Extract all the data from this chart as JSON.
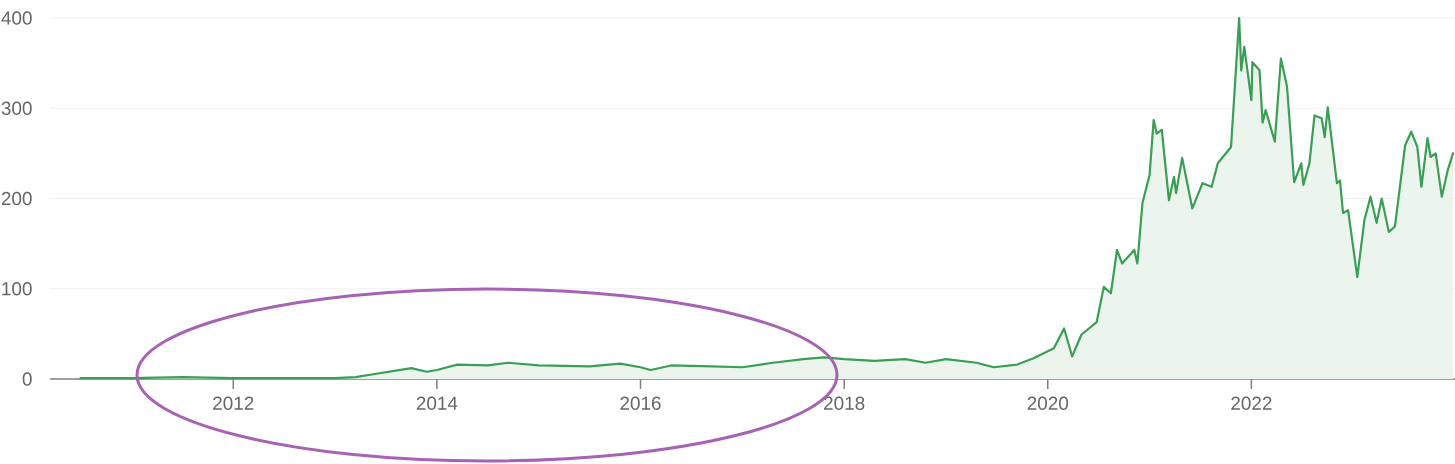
{
  "chart_data": {
    "type": "area",
    "color": "#3a9e55",
    "x": [
      2010.5,
      2011.0,
      2011.5,
      2012.0,
      2012.5,
      2013.0,
      2013.2,
      2013.36,
      2013.75,
      2013.9,
      2014.0,
      2014.2,
      2014.5,
      2014.7,
      2015.0,
      2015.5,
      2015.8,
      2016.0,
      2016.1,
      2016.3,
      2016.7,
      2017.0,
      2017.3,
      2017.6,
      2017.8,
      2018.0,
      2018.3,
      2018.6,
      2018.8,
      2019.0,
      2019.3,
      2019.47,
      2019.7,
      2019.86,
      2020.06,
      2020.16,
      2020.24,
      2020.33,
      2020.48,
      2020.55,
      2020.62,
      2020.68,
      2020.73,
      2020.85,
      2020.88,
      2020.93,
      2021.0,
      2021.04,
      2021.07,
      2021.12,
      2021.19,
      2021.24,
      2021.26,
      2021.32,
      2021.42,
      2021.52,
      2021.61,
      2021.67,
      2021.8,
      2021.88,
      2021.9,
      2021.93,
      2022.0,
      2022.01,
      2022.08,
      2022.11,
      2022.14,
      2022.23,
      2022.29,
      2022.35,
      2022.42,
      2022.49,
      2022.51,
      2022.57,
      2022.62,
      2022.69,
      2022.72,
      2022.75,
      2022.84,
      2022.87,
      2022.9,
      2022.95,
      2023.04,
      2023.11,
      2023.17,
      2023.23,
      2023.28,
      2023.35,
      2023.41,
      2023.51,
      2023.57,
      2023.63,
      2023.67,
      2023.73,
      2023.76,
      2023.81,
      2023.87,
      2023.93,
      2023.98
    ],
    "values": [
      1,
      1,
      2,
      1,
      1,
      1,
      2,
      5,
      12,
      8,
      10,
      16,
      15,
      18,
      15,
      14,
      17,
      13,
      10,
      15,
      14,
      13,
      18,
      22,
      24,
      22,
      20,
      22,
      18,
      22,
      18,
      13,
      16,
      23,
      34,
      56,
      25,
      49,
      63,
      102,
      95,
      143,
      128,
      143,
      128,
      195,
      226,
      287,
      272,
      276,
      198,
      224,
      206,
      245,
      189,
      217,
      213,
      239,
      257,
      400,
      342,
      368,
      309,
      351,
      342,
      284,
      298,
      263,
      355,
      324,
      218,
      239,
      215,
      239,
      292,
      289,
      268,
      301,
      217,
      220,
      184,
      187,
      113,
      176,
      202,
      173,
      200,
      163,
      169,
      259,
      274,
      257,
      213,
      267,
      246,
      250,
      202,
      232,
      250
    ],
    "xlim": [
      2010.2,
      2024.0
    ],
    "ylim": [
      0,
      400
    ],
    "xticks": [
      2012,
      2014,
      2016,
      2018,
      2020,
      2022
    ],
    "yticks": [
      0,
      100,
      200,
      300,
      400
    ],
    "grid": "y"
  }
}
